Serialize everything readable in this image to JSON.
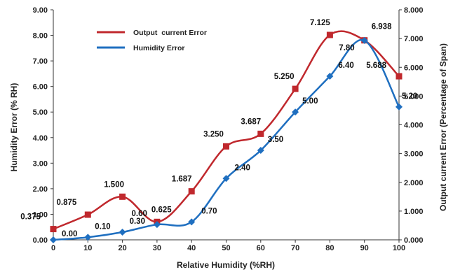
{
  "chart_data": {
    "type": "line",
    "xlabel": "Relative Humidity (%RH)",
    "ylabel_left": "Humidity Error (% RH)",
    "ylabel_right": "Output  current Error (Percentage of Span)",
    "x": [
      0,
      10,
      20,
      30,
      40,
      50,
      60,
      70,
      80,
      90,
      100
    ],
    "x_ticks": [
      "0",
      "10",
      "20",
      "30",
      "40",
      "50",
      "60",
      "70",
      "80",
      "90",
      "100"
    ],
    "xlim": [
      0,
      100
    ],
    "ylim_left": [
      0,
      9
    ],
    "ylim_right": [
      0,
      8
    ],
    "y_left_ticks": [
      "0.00",
      "1.00",
      "2.00",
      "3.00",
      "4.00",
      "5.00",
      "6.00",
      "7.00",
      "8.00",
      "9.00"
    ],
    "y_right_ticks": [
      "0.000",
      "1.000",
      "2.000",
      "3.000",
      "4.000",
      "5.000",
      "6.000",
      "7.000",
      "8.000"
    ],
    "grid": false,
    "legend_position": "top-left",
    "series": [
      {
        "name": "Output  current Error",
        "axis": "right",
        "color": "#c0282d",
        "marker": "square",
        "values": [
          0.375,
          0.875,
          1.5,
          0.625,
          1.687,
          3.25,
          3.687,
          5.25,
          7.125,
          6.938,
          5.688
        ],
        "labels": [
          "0.375",
          "0.875",
          "1.500",
          "0.625",
          "1.687",
          "3.250",
          "3.687",
          "5.250",
          "7.125",
          "6.938",
          "5.688"
        ]
      },
      {
        "name": "Humidity Error",
        "axis": "left",
        "color": "#1f6fc0",
        "marker": "diamond",
        "values": [
          0.0,
          0.1,
          0.3,
          0.6,
          0.7,
          2.4,
          3.5,
          5.0,
          6.4,
          7.8,
          5.2
        ],
        "labels": [
          "0.00",
          "0.10",
          "0.30",
          "0.60",
          "0.70",
          "2.40",
          "3.50",
          "5.00",
          "6.40",
          "7.80",
          "5.20"
        ]
      }
    ]
  }
}
